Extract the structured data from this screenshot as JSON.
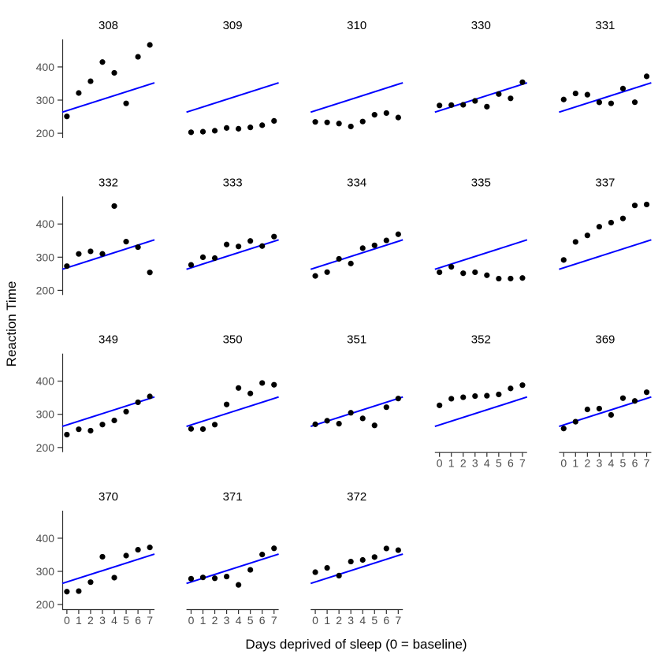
{
  "figure": {
    "background": "#ffffff"
  },
  "chart_data": {
    "type": "scatter",
    "title": "",
    "xlabel": "Days deprived of sleep (0 = baseline)",
    "ylabel": "Reaction Time",
    "facet_by": "Subject",
    "layout": {
      "ncol": 5,
      "nrow": 4,
      "legend": "none",
      "grid": false,
      "y_axis_panels": "left column only",
      "x_axis_panels": "bottom-most panels only"
    },
    "xlim": [
      -0.39,
      7.39
    ],
    "ylim": [
      186,
      483
    ],
    "x_ticks": [
      0,
      1,
      2,
      3,
      4,
      5,
      6,
      7
    ],
    "y_ticks": [
      200,
      300,
      400
    ],
    "point_color": "#000000",
    "line_color": "#0000ff",
    "axis_line_color": "#2f2f2f",
    "tick_text_color": "#4d4d4d",
    "facet_title_color": "#000000",
    "pooled_fit_line": {
      "intercept": 268,
      "slope": 11.4,
      "applies_to": "every panel"
    },
    "panels": [
      {
        "subject": "308",
        "x": [
          0,
          1,
          2,
          3,
          4,
          5,
          6,
          7
        ],
        "y": [
          250.8,
          321.4,
          356.9,
          414.7,
          382.2,
          290.1,
          430.6,
          466.4
        ]
      },
      {
        "subject": "309",
        "x": [
          0,
          1,
          2,
          3,
          4,
          5,
          6,
          7
        ],
        "y": [
          203.0,
          204.7,
          207.7,
          216.0,
          213.6,
          217.7,
          224.3,
          237.3
        ]
      },
      {
        "subject": "310",
        "x": [
          0,
          1,
          2,
          3,
          4,
          5,
          6,
          7
        ],
        "y": [
          234.3,
          232.8,
          229.3,
          220.5,
          235.4,
          255.8,
          261.0,
          247.5
        ]
      },
      {
        "subject": "330",
        "x": [
          0,
          1,
          2,
          3,
          4,
          5,
          6,
          7
        ],
        "y": [
          283.9,
          285.1,
          285.8,
          297.6,
          280.2,
          318.3,
          305.3,
          354.0
        ]
      },
      {
        "subject": "331",
        "x": [
          0,
          1,
          2,
          3,
          4,
          5,
          6,
          7
        ],
        "y": [
          301.8,
          320.1,
          316.3,
          293.3,
          290.1,
          334.8,
          293.7,
          371.6
        ]
      },
      {
        "subject": "332",
        "x": [
          0,
          1,
          2,
          3,
          4,
          5,
          6,
          7
        ],
        "y": [
          273.0,
          309.8,
          317.5,
          310.0,
          454.2,
          346.8,
          330.3,
          253.9
        ]
      },
      {
        "subject": "333",
        "x": [
          0,
          1,
          2,
          3,
          4,
          5,
          6,
          7
        ],
        "y": [
          276.8,
          299.8,
          297.2,
          338.2,
          332.3,
          348.8,
          333.4,
          362.0
        ]
      },
      {
        "subject": "334",
        "x": [
          0,
          1,
          2,
          3,
          4,
          5,
          6,
          7
        ],
        "y": [
          243.4,
          254.9,
          294.9,
          280.9,
          327.2,
          335.7,
          350.5,
          369.1
        ]
      },
      {
        "subject": "335",
        "x": [
          0,
          1,
          2,
          3,
          4,
          5,
          6,
          7
        ],
        "y": [
          254.5,
          270.8,
          251.5,
          254.6,
          245.5,
          235.3,
          235.5,
          237.2
        ]
      },
      {
        "subject": "337",
        "x": [
          0,
          1,
          2,
          3,
          4,
          5,
          6,
          7
        ],
        "y": [
          291.6,
          346.1,
          365.7,
          391.8,
          404.3,
          416.7,
          455.9,
          458.9
        ]
      },
      {
        "subject": "349",
        "x": [
          0,
          1,
          2,
          3,
          4,
          5,
          6,
          7
        ],
        "y": [
          238.9,
          254.9,
          250.7,
          269.1,
          281.5,
          308.1,
          336.3,
          354.0
        ]
      },
      {
        "subject": "350",
        "x": [
          0,
          1,
          2,
          3,
          4,
          5,
          6,
          7
        ],
        "y": [
          256.2,
          255.5,
          268.9,
          329.7,
          379.4,
          362.9,
          394.5,
          389.1
        ]
      },
      {
        "subject": "351",
        "x": [
          0,
          1,
          2,
          3,
          4,
          5,
          6,
          7
        ],
        "y": [
          269.9,
          280.6,
          271.8,
          304.6,
          287.7,
          266.6,
          321.5,
          347.6
        ]
      },
      {
        "subject": "352",
        "x": [
          0,
          1,
          2,
          3,
          4,
          5,
          6,
          7
        ],
        "y": [
          327.0,
          347.0,
          351.5,
          355.0,
          356.0,
          360.0,
          378.0,
          388.0
        ]
      },
      {
        "subject": "369",
        "x": [
          0,
          1,
          2,
          3,
          4,
          5,
          6,
          7
        ],
        "y": [
          257.2,
          277.7,
          314.8,
          317.2,
          298.2,
          348.8,
          340.3,
          366.5
        ]
      },
      {
        "subject": "370",
        "x": [
          0,
          1,
          2,
          3,
          4,
          5,
          6,
          7
        ],
        "y": [
          238.9,
          240.5,
          267.5,
          344.2,
          281.1,
          347.6,
          365.2,
          372.2
        ]
      },
      {
        "subject": "371",
        "x": [
          0,
          1,
          2,
          3,
          4,
          5,
          6,
          7
        ],
        "y": [
          277.9,
          281.8,
          279.2,
          284.5,
          259.3,
          304.6,
          350.8,
          369.5
        ]
      },
      {
        "subject": "372",
        "x": [
          0,
          1,
          2,
          3,
          4,
          5,
          6,
          7
        ],
        "y": [
          297.6,
          310.6,
          287.2,
          329.6,
          334.5,
          343.2,
          369.1,
          364.1
        ]
      }
    ]
  }
}
